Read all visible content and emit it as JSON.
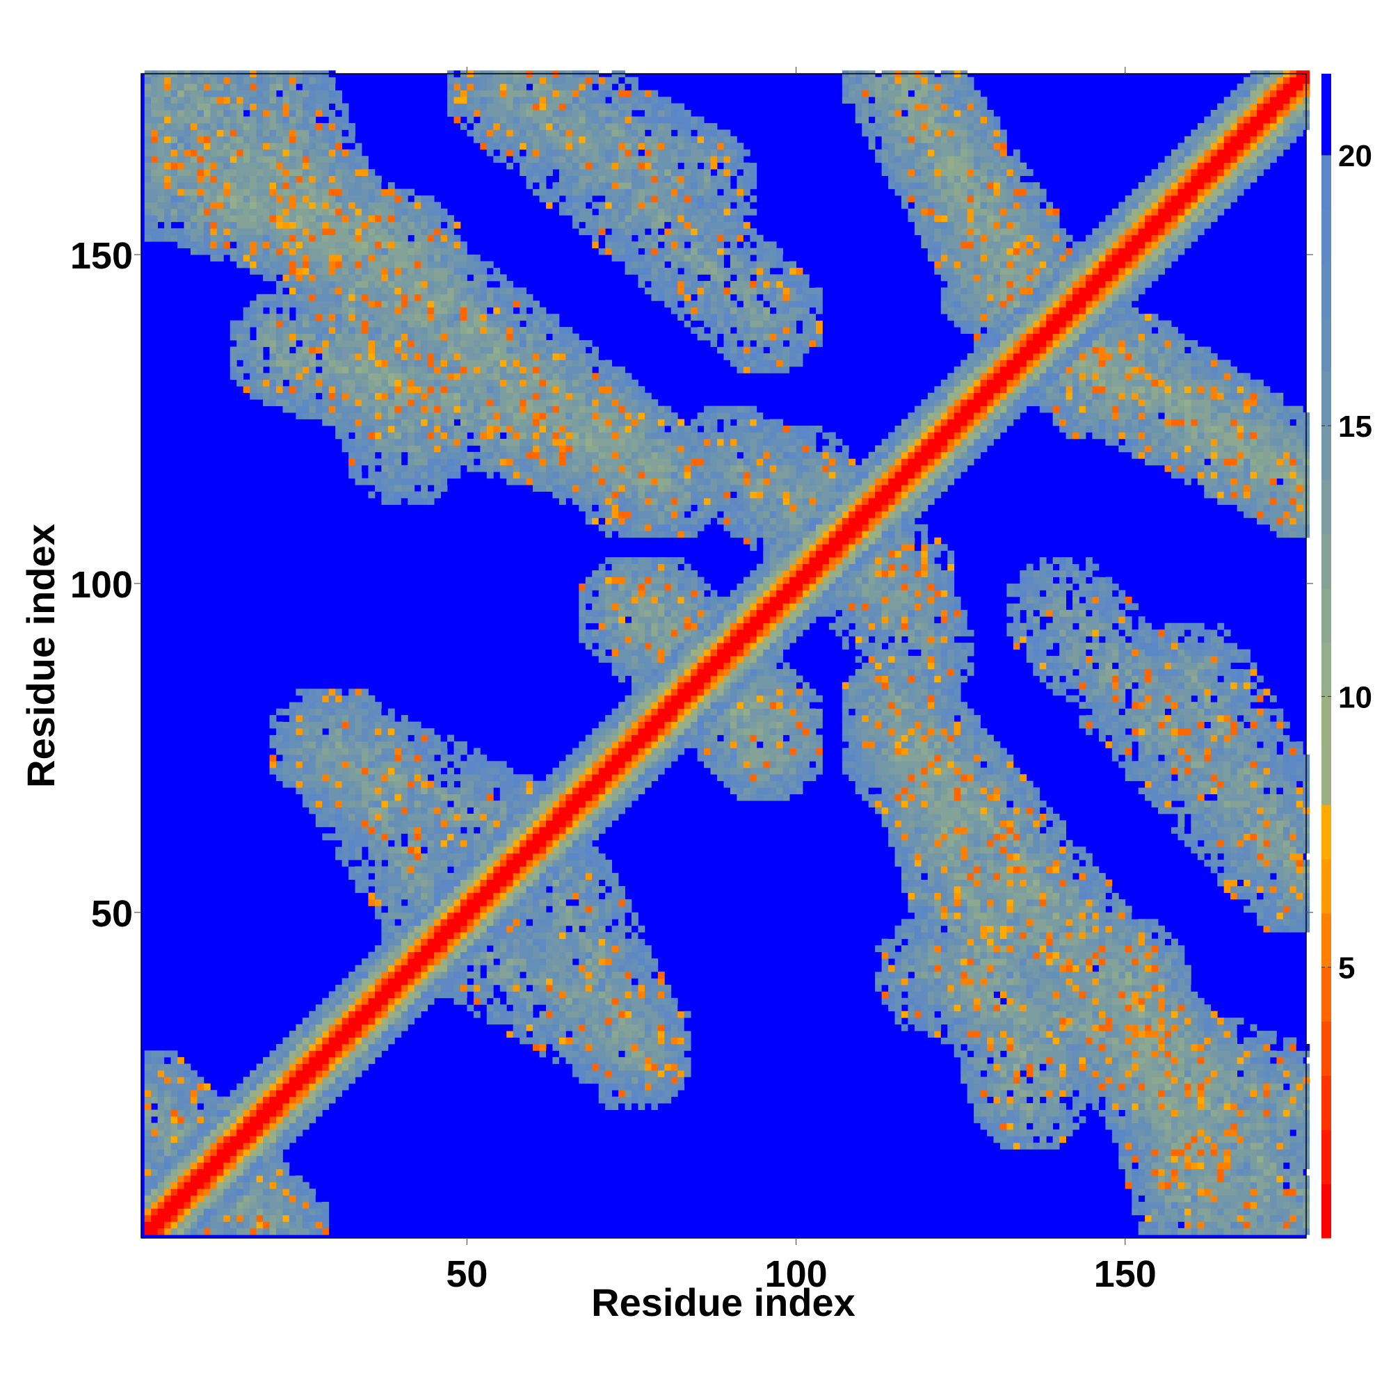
{
  "chart_data": {
    "type": "heatmap",
    "title": "",
    "xlabel": "Residue index",
    "ylabel": "Residue index",
    "xlim": [
      1,
      177
    ],
    "ylim": [
      1,
      177
    ],
    "x_ticks": [
      50,
      100,
      150
    ],
    "y_ticks": [
      50,
      100,
      150
    ],
    "x_tick_labels": [
      "50",
      "100",
      "150"
    ],
    "y_tick_labels": [
      "50",
      "100",
      "150"
    ],
    "grid": false,
    "legend": "colorbar-right",
    "colorbar": {
      "range": [
        0,
        21.5
      ],
      "ticks": [
        5,
        10,
        15,
        20
      ],
      "tick_labels": [
        "5",
        "10",
        "15",
        "20"
      ],
      "levels": [
        {
          "upper": 1,
          "color": "#ff0000"
        },
        {
          "upper": 2,
          "color": "#ff1a00"
        },
        {
          "upper": 3,
          "color": "#ff3300"
        },
        {
          "upper": 4,
          "color": "#ff4d00"
        },
        {
          "upper": 5,
          "color": "#ff6600"
        },
        {
          "upper": 6,
          "color": "#ff8000"
        },
        {
          "upper": 7,
          "color": "#ff9900"
        },
        {
          "upper": 8,
          "color": "#ffaa00"
        },
        {
          "upper": 9,
          "color": "#9caf84"
        },
        {
          "upper": 10,
          "color": "#9ab083"
        },
        {
          "upper": 11,
          "color": "#94ad8a"
        },
        {
          "upper": 12,
          "color": "#8ca890"
        },
        {
          "upper": 13,
          "color": "#84a298"
        },
        {
          "upper": 14,
          "color": "#7c9da0"
        },
        {
          "upper": 15,
          "color": "#7498a8"
        },
        {
          "upper": 16,
          "color": "#6c93b0"
        },
        {
          "upper": 17,
          "color": "#668fb8"
        },
        {
          "upper": 18,
          "color": "#628bbf"
        },
        {
          "upper": 19,
          "color": "#5f89c4"
        },
        {
          "upper": 20,
          "color": "#5b86c8"
        },
        {
          "upper": 21.5,
          "color": "#0000ff"
        }
      ]
    },
    "value_description": "residue-residue distance; diagonal band near 0, off-diagonal contact regions 8-16, background above 20",
    "contact_bands": [
      {
        "x": [
          1,
          75
        ],
        "y": [
          170,
          115
        ],
        "value": 14
      },
      {
        "x": [
          5,
          40
        ],
        "y": [
          160,
          150
        ],
        "value": 13
      },
      {
        "x": [
          22,
          70
        ],
        "y": [
          135,
          120
        ],
        "value": 13
      },
      {
        "x": [
          55,
          85
        ],
        "y": [
          177,
          160
        ],
        "value": 14
      },
      {
        "x": [
          28,
          60
        ],
        "y": [
          75,
          60
        ],
        "value": 14
      },
      {
        "x": [
          50,
          75
        ],
        "y": [
          45,
          30
        ],
        "value": 14
      },
      {
        "x": [
          75,
          95
        ],
        "y": [
          95,
          78
        ],
        "value": 13
      },
      {
        "x": [
          90,
          115
        ],
        "y": [
          118,
          100
        ],
        "value": 14
      },
      {
        "x": [
          115,
          175
        ],
        "y": [
          80,
          5
        ],
        "value": 13
      },
      {
        "x": [
          140,
          175
        ],
        "y": [
          95,
          55
        ],
        "value": 14
      },
      {
        "x": [
          115,
          145
        ],
        "y": [
          177,
          130
        ],
        "value": 13
      },
      {
        "x": [
          140,
          177
        ],
        "y": [
          135,
          115
        ],
        "value": 13
      },
      {
        "x": [
          120,
          177
        ],
        "y": [
          40,
          20
        ],
        "value": 14
      },
      {
        "x": [
          1,
          20
        ],
        "y": [
          20,
          1
        ],
        "value": 14
      }
    ]
  }
}
